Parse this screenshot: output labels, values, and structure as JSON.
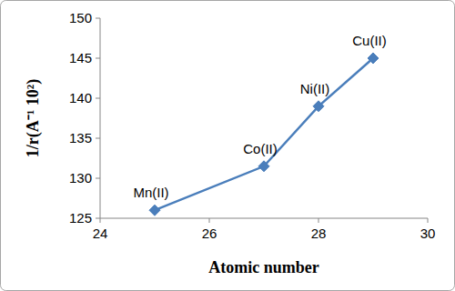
{
  "chart_data": {
    "type": "line",
    "x": [
      25,
      27,
      28,
      29
    ],
    "values": [
      126,
      131.5,
      139,
      145
    ],
    "annotations": [
      "Mn(II)",
      "Co(II)",
      "Ni(II)",
      "Cu(II)"
    ],
    "x_label": "Atomic number",
    "y_label": "1/r(A⁻¹ 10²)",
    "color": "#4a7ebb",
    "marker": "diamond",
    "xlim": [
      24,
      30
    ],
    "xticks": [
      24,
      26,
      28,
      30
    ],
    "ylim": [
      125,
      150
    ],
    "yticks": [
      125,
      130,
      135,
      140,
      145,
      150
    ],
    "grid": false
  }
}
